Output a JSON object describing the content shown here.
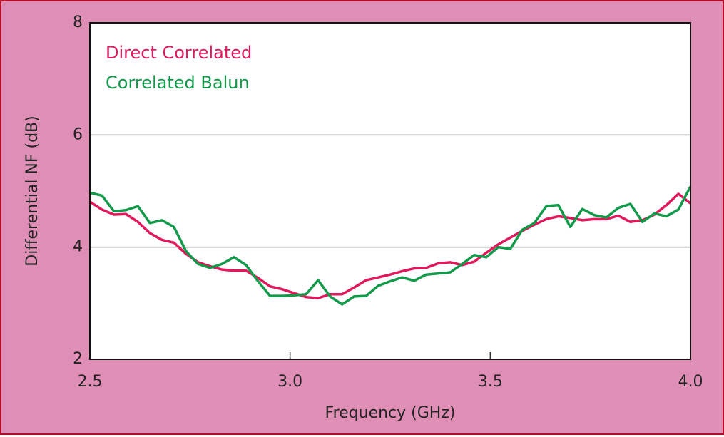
{
  "chart_data": {
    "type": "line",
    "xlabel": "Frequency (GHz)",
    "ylabel": "Differential NF (dB)",
    "x": [
      2.5,
      2.53,
      2.56,
      2.59,
      2.62,
      2.65,
      2.68,
      2.71,
      2.74,
      2.77,
      2.8,
      2.83,
      2.86,
      2.89,
      2.92,
      2.95,
      2.98,
      3.01,
      3.04,
      3.07,
      3.1,
      3.13,
      3.16,
      3.19,
      3.22,
      3.25,
      3.28,
      3.31,
      3.34,
      3.37,
      3.4,
      3.43,
      3.46,
      3.49,
      3.52,
      3.55,
      3.58,
      3.61,
      3.64,
      3.67,
      3.7,
      3.73,
      3.76,
      3.79,
      3.82,
      3.85,
      3.88,
      3.91,
      3.94,
      3.97,
      4.0
    ],
    "series": [
      {
        "name": "Direct Correlated",
        "color": "#e0195a",
        "values": [
          4.81,
          4.67,
          4.58,
          4.59,
          4.45,
          4.25,
          4.13,
          4.08,
          3.88,
          3.73,
          3.66,
          3.6,
          3.58,
          3.58,
          3.45,
          3.3,
          3.25,
          3.18,
          3.11,
          3.09,
          3.16,
          3.16,
          3.28,
          3.41,
          3.46,
          3.51,
          3.57,
          3.62,
          3.63,
          3.71,
          3.73,
          3.68,
          3.74,
          3.9,
          4.05,
          4.17,
          4.29,
          4.4,
          4.5,
          4.55,
          4.52,
          4.48,
          4.5,
          4.5,
          4.56,
          4.45,
          4.48,
          4.58,
          4.75,
          4.95,
          4.78
        ]
      },
      {
        "name": "Correlated Balun",
        "color": "#12994a",
        "values": [
          4.97,
          4.92,
          4.64,
          4.66,
          4.73,
          4.43,
          4.48,
          4.36,
          3.93,
          3.7,
          3.63,
          3.7,
          3.82,
          3.68,
          3.39,
          3.13,
          3.13,
          3.14,
          3.16,
          3.41,
          3.12,
          2.98,
          3.12,
          3.13,
          3.31,
          3.39,
          3.46,
          3.4,
          3.51,
          3.53,
          3.55,
          3.7,
          3.86,
          3.82,
          4.0,
          3.97,
          4.31,
          4.43,
          4.73,
          4.75,
          4.36,
          4.68,
          4.57,
          4.53,
          4.7,
          4.77,
          4.45,
          4.6,
          4.55,
          4.67,
          5.08
        ]
      }
    ],
    "xlim": [
      2.5,
      4.0
    ],
    "xticks": [
      2.5,
      {
        "value": 3,
        "label": "3.0"
      },
      3.5,
      {
        "value": 4,
        "label": "4.0"
      }
    ],
    "ylim": [
      2,
      8
    ],
    "yticks": [
      2,
      4,
      6,
      8
    ],
    "grid": true,
    "legend": "upper left"
  }
}
